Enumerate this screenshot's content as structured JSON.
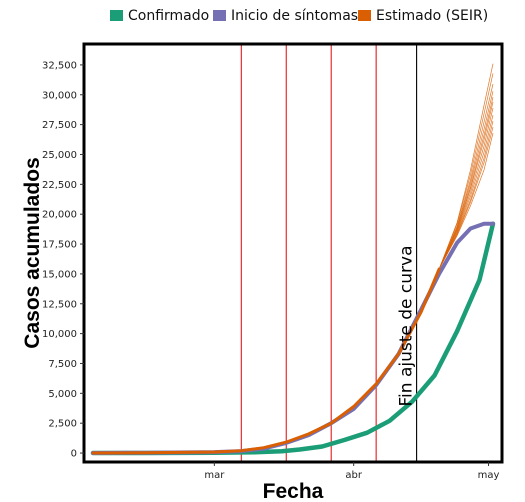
{
  "chart_data": {
    "type": "line",
    "title": "",
    "xlabel": "Fecha",
    "ylabel": "Casos acumulados",
    "legend_position": "top",
    "grid": false,
    "x_ticks": [
      "mar",
      "abr",
      "may"
    ],
    "x_tick_dates": [
      "2020-03-01",
      "2020-04-01",
      "2020-05-01"
    ],
    "xlim": [
      "2020-02-01",
      "2020-05-04"
    ],
    "ylim": [
      -750,
      34250
    ],
    "y_ticks": [
      0,
      2500,
      5000,
      7500,
      10000,
      12500,
      15000,
      17500,
      20000,
      22500,
      25000,
      27500,
      30000,
      32500
    ],
    "y_tick_labels": [
      "0",
      "2,500",
      "5,000",
      "7,500",
      "10,000",
      "12,500",
      "15,000",
      "17,500",
      "20,000",
      "22,500",
      "25,000",
      "27,500",
      "30,000",
      "32,500"
    ],
    "legend": [
      {
        "label": "Confirmado",
        "color": "#1b9e77"
      },
      {
        "label": "Inicio de síntomas",
        "color": "#7570b3"
      },
      {
        "label": "Estimado (SEIR)",
        "color": "#d95f02"
      }
    ],
    "vertical_lines": [
      {
        "date": "2020-03-07",
        "color": "#e41a1c"
      },
      {
        "date": "2020-03-17",
        "color": "#e41a1c"
      },
      {
        "date": "2020-03-27",
        "color": "#e41a1c"
      },
      {
        "date": "2020-04-06",
        "color": "#e41a1c"
      },
      {
        "date": "2020-04-15",
        "color": "#000000",
        "label": "Fin ajuste de curva"
      }
    ],
    "series": [
      {
        "name": "Confirmado",
        "color": "#1b9e77",
        "x": [
          "2020-02-03",
          "2020-02-15",
          "2020-03-01",
          "2020-03-10",
          "2020-03-16",
          "2020-03-20",
          "2020-03-25",
          "2020-03-30",
          "2020-04-04",
          "2020-04-09",
          "2020-04-14",
          "2020-04-19",
          "2020-04-24",
          "2020-04-29",
          "2020-05-02"
        ],
        "y": [
          0,
          0,
          20,
          60,
          150,
          300,
          550,
          1100,
          1700,
          2700,
          4300,
          6500,
          10200,
          14500,
          19200
        ]
      },
      {
        "name": "Inicio de síntomas",
        "color": "#7570b3",
        "x": [
          "2020-02-03",
          "2020-02-15",
          "2020-03-01",
          "2020-03-07",
          "2020-03-12",
          "2020-03-17",
          "2020-03-22",
          "2020-03-27",
          "2020-04-01",
          "2020-04-06",
          "2020-04-11",
          "2020-04-16",
          "2020-04-20",
          "2020-04-24",
          "2020-04-27",
          "2020-04-30",
          "2020-05-02"
        ],
        "y": [
          0,
          30,
          80,
          160,
          380,
          850,
          1500,
          2500,
          3700,
          5700,
          8300,
          12000,
          15000,
          17600,
          18800,
          19200,
          19200
        ]
      },
      {
        "name": "Estimado (SEIR)",
        "color": "#d95f02",
        "x": [
          "2020-02-03",
          "2020-02-15",
          "2020-03-01",
          "2020-03-07",
          "2020-03-12",
          "2020-03-17",
          "2020-03-22",
          "2020-03-27",
          "2020-04-01",
          "2020-04-06",
          "2020-04-11",
          "2020-04-16",
          "2020-04-20"
        ],
        "y": [
          0,
          20,
          90,
          200,
          450,
          920,
          1600,
          2500,
          3900,
          5800,
          8300,
          11800,
          15400
        ]
      }
    ],
    "seir_projection": {
      "x": [
        "2020-04-20",
        "2020-04-24",
        "2020-04-27",
        "2020-04-30",
        "2020-05-02"
      ],
      "runs": [
        [
          15400,
          18200,
          20700,
          23700,
          26800
        ],
        [
          15400,
          18300,
          21000,
          24300,
          27300
        ],
        [
          15400,
          18400,
          21200,
          24700,
          27800
        ],
        [
          15400,
          18500,
          21500,
          25200,
          28300
        ],
        [
          15400,
          18600,
          21800,
          25700,
          28900
        ],
        [
          15400,
          18700,
          22100,
          26200,
          29400
        ],
        [
          15400,
          18800,
          22300,
          26600,
          29800
        ],
        [
          15400,
          18900,
          22600,
          27100,
          30300
        ],
        [
          15400,
          19000,
          22900,
          27700,
          30900
        ],
        [
          15400,
          19200,
          23300,
          28400,
          31800
        ],
        [
          15400,
          19300,
          23700,
          29100,
          32600
        ]
      ]
    }
  }
}
